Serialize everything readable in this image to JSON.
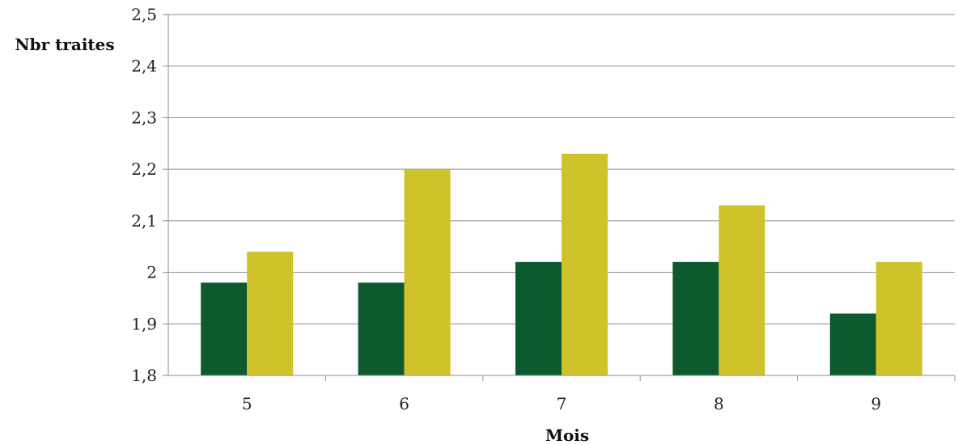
{
  "chart_data": {
    "type": "bar",
    "title": "",
    "xlabel": "Mois",
    "ylabel": "Nbr traites",
    "categories": [
      "5",
      "6",
      "7",
      "8",
      "9"
    ],
    "yticks": [
      "1,8",
      "1,9",
      "2",
      "2,1",
      "2,2",
      "2,3",
      "2,4",
      "2,5"
    ],
    "ylim": [
      1.8,
      2.5
    ],
    "grid": true,
    "legend": "none",
    "series": [
      {
        "values": [
          1.98,
          1.98,
          2.02,
          2.02,
          1.92
        ],
        "color": "#0e5a2f"
      },
      {
        "values": [
          2.04,
          2.2,
          2.23,
          2.13,
          2.02
        ],
        "color": "#d0c22b"
      }
    ]
  }
}
